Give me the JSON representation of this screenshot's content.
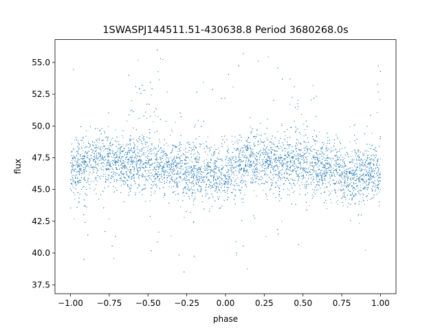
{
  "chart_data": {
    "type": "scatter",
    "title": "1SWASPJ144511.51-430638.8 Period 3680268.0s",
    "xlabel": "phase",
    "ylabel": "flux",
    "xlim": [
      -1.1,
      1.1
    ],
    "ylim": [
      36.8,
      56.8
    ],
    "x_ticks": [
      -1.0,
      -0.75,
      -0.5,
      -0.25,
      0.0,
      0.25,
      0.5,
      0.75,
      1.0
    ],
    "x_tick_labels": [
      "−1.00",
      "−0.75",
      "−0.50",
      "−0.25",
      "0.00",
      "0.25",
      "0.50",
      "0.75",
      "1.00"
    ],
    "y_ticks": [
      37.5,
      40.0,
      42.5,
      45.0,
      47.5,
      50.0,
      52.5,
      55.0
    ],
    "y_tick_labels": [
      "37.5",
      "40.0",
      "42.5",
      "45.0",
      "47.5",
      "50.0",
      "52.5",
      "55.0"
    ],
    "point_color": "#1f77b4",
    "grid": false,
    "series": [
      {
        "x_range": [
          -1.0,
          1.0
        ],
        "baseline_profile": {
          "phase": [
            0.0,
            0.05,
            0.1,
            0.15,
            0.2,
            0.25,
            0.3,
            0.35,
            0.4,
            0.45,
            0.5,
            0.55,
            0.6,
            0.65,
            0.7,
            0.75,
            0.8,
            0.85,
            0.9,
            0.95,
            1.0
          ],
          "flux": [
            46.3,
            46.8,
            47.1,
            47.3,
            47.5,
            47.4,
            47.1,
            46.9,
            47.0,
            47.1,
            46.9,
            46.6,
            46.7,
            46.8,
            46.6,
            46.3,
            46.1,
            46.2,
            46.4,
            46.2,
            46.0
          ]
        },
        "outbursts": [
          {
            "phase_start": 0.37,
            "phase_end": 0.52,
            "flux_max": 54.0
          },
          {
            "phase_start": 0.46,
            "phase_end": 0.59,
            "flux_max": 53.5
          },
          {
            "phase_start": 0.7,
            "phase_end": 0.74,
            "flux_max": 52.0
          },
          {
            "phase_start": 0.8,
            "phase_end": 0.87,
            "flux_max": 50.5
          },
          {
            "phase_start": 0.97,
            "phase_end": 1.0,
            "flux_max": 56.0
          }
        ],
        "dips": [
          {
            "phase_start": 0.05,
            "phase_end": 0.12,
            "flux_min": 39.5
          },
          {
            "phase_start": 0.72,
            "phase_end": 0.9,
            "flux_min": 42.0
          },
          {
            "phase_start": 0.18,
            "phase_end": 0.24,
            "flux_min": 41.5
          }
        ]
      }
    ]
  }
}
